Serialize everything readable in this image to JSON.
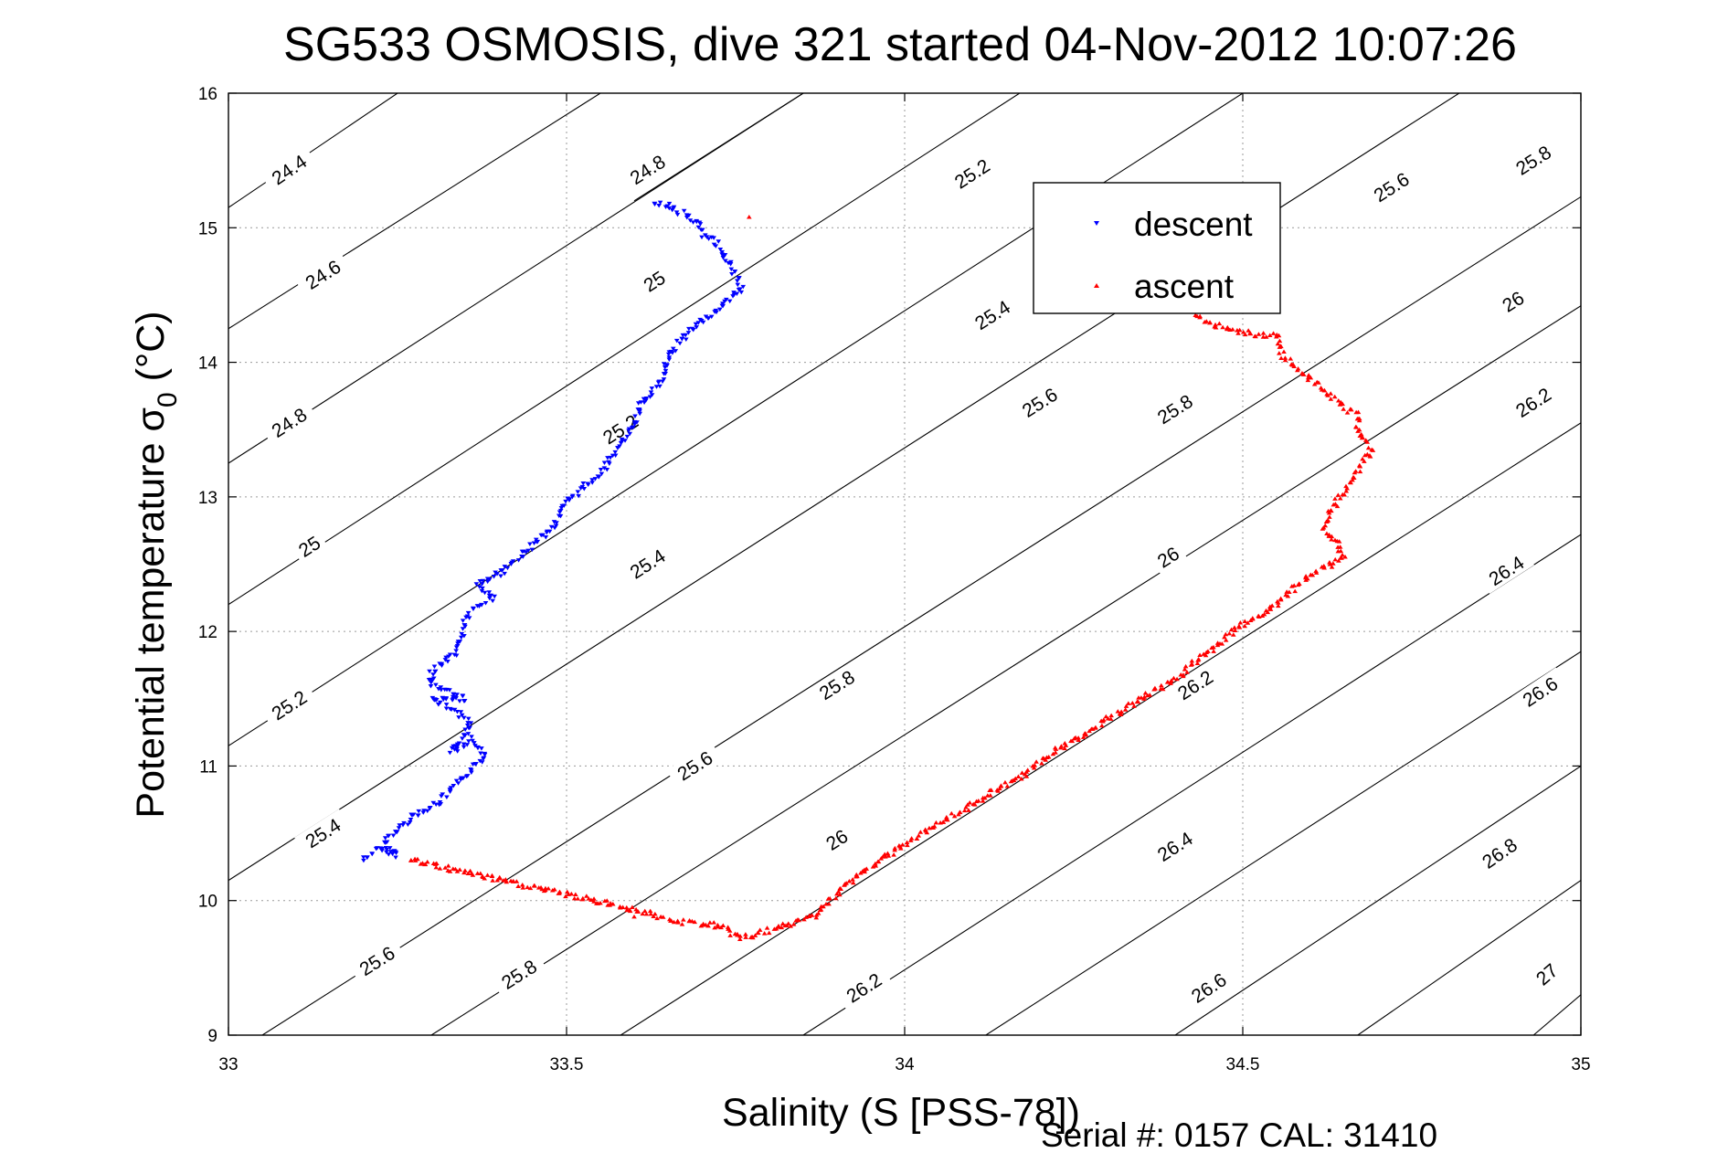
{
  "figure": {
    "title": "SG533 OSMOSIS, dive 321 started 04-Nov-2012 10:07:26",
    "serial_text": "Serial #: 0157  CAL: 31410"
  },
  "chart_data": {
    "type": "scatter",
    "title": "SG533 OSMOSIS, dive 321 started 04-Nov-2012 10:07:26",
    "xlabel": "Salinity (S [PSS-78])",
    "ylabel": "Potential temperature σ0 (°C)",
    "xlim": [
      33,
      35
    ],
    "ylim": [
      9,
      16
    ],
    "xticks": [
      33,
      33.5,
      34,
      34.5,
      35
    ],
    "xtick_labels": [
      "33",
      "33.5",
      "34",
      "34.5",
      "35"
    ],
    "yticks": [
      9,
      10,
      11,
      12,
      13,
      14,
      15,
      16
    ],
    "ytick_labels": [
      "9",
      "10",
      "11",
      "12",
      "13",
      "14",
      "15",
      "16"
    ],
    "grid": true,
    "legend_position": "top-right",
    "contours": [
      {
        "label": "24.4",
        "x0": 33.0,
        "y0": 15.15,
        "x1": 33.25,
        "y1": 16.0,
        "lx": 33.09,
        "ly": 15.43
      },
      {
        "label": "24.6",
        "x0": 33.0,
        "y0": 14.25,
        "x1": 33.55,
        "y1": 16.0,
        "lx": 33.14,
        "ly": 14.65
      },
      {
        "label": "24.8",
        "x0": 33.0,
        "y0": 13.25,
        "x1": 33.85,
        "y1": 16.0,
        "lx": 33.09,
        "ly": 13.55
      },
      {
        "label": "24.8",
        "x0": 33.6,
        "y0": 15.2,
        "x1": 33.85,
        "y1": 16.0,
        "lx": 33.62,
        "ly": 15.43
      },
      {
        "label": "25",
        "x0": 33.0,
        "y0": 12.2,
        "x1": 34.17,
        "y1": 16.0,
        "lx": 33.12,
        "ly": 12.63
      },
      {
        "label": "25",
        "x0": 33.0,
        "y0": 12.2,
        "x1": 34.17,
        "y1": 16.0,
        "lx": 33.63,
        "ly": 14.6
      },
      {
        "label": "25.2",
        "x0": 33.0,
        "y0": 11.15,
        "x1": 34.5,
        "y1": 16.0,
        "lx": 33.09,
        "ly": 11.45
      },
      {
        "label": "25.2",
        "x0": 33.0,
        "y0": 11.15,
        "x1": 34.5,
        "y1": 16.0,
        "lx": 34.1,
        "ly": 15.4
      },
      {
        "label": "25.2",
        "x0": 33.0,
        "y0": 11.15,
        "x1": 34.5,
        "y1": 16.0,
        "lx": 33.58,
        "ly": 13.5
      },
      {
        "label": "25.4",
        "x0": 33.0,
        "y0": 10.15,
        "x1": 34.82,
        "y1": 16.0,
        "lx": 33.14,
        "ly": 10.5
      },
      {
        "label": "25.4",
        "x0": 33.0,
        "y0": 10.15,
        "x1": 34.82,
        "y1": 16.0,
        "lx": 33.62,
        "ly": 12.5
      },
      {
        "label": "25.4",
        "x0": 33.0,
        "y0": 10.15,
        "x1": 34.82,
        "y1": 16.0,
        "lx": 34.13,
        "ly": 14.35
      },
      {
        "label": "25.6",
        "x0": 33.05,
        "y0": 9.0,
        "x1": 35.0,
        "y1": 15.23,
        "lx": 33.22,
        "ly": 9.55
      },
      {
        "label": "25.6",
        "x0": 33.05,
        "y0": 9.0,
        "x1": 35.0,
        "y1": 15.23,
        "lx": 33.69,
        "ly": 11.0
      },
      {
        "label": "25.6",
        "x0": 33.05,
        "y0": 9.0,
        "x1": 35.0,
        "y1": 15.23,
        "lx": 34.2,
        "ly": 13.7
      },
      {
        "label": "25.6",
        "x0": 33.05,
        "y0": 9.0,
        "x1": 35.0,
        "y1": 15.23,
        "lx": 34.72,
        "ly": 15.3
      },
      {
        "label": "25.8",
        "x0": 33.3,
        "y0": 9.0,
        "x1": 35.0,
        "y1": 14.42,
        "lx": 33.43,
        "ly": 9.45
      },
      {
        "label": "25.8",
        "x0": 33.3,
        "y0": 9.0,
        "x1": 35.0,
        "y1": 14.42,
        "lx": 33.9,
        "ly": 11.6
      },
      {
        "label": "25.8",
        "x0": 33.3,
        "y0": 9.0,
        "x1": 35.0,
        "y1": 14.42,
        "lx": 34.4,
        "ly": 13.65
      },
      {
        "label": "25.8",
        "x0": 33.3,
        "y0": 9.0,
        "x1": 35.0,
        "y1": 14.42,
        "lx": 34.93,
        "ly": 15.5
      },
      {
        "label": "26",
        "x0": 33.58,
        "y0": 9.0,
        "x1": 35.0,
        "y1": 13.55,
        "lx": 33.9,
        "ly": 10.45
      },
      {
        "label": "26",
        "x0": 33.58,
        "y0": 9.0,
        "x1": 35.0,
        "y1": 13.55,
        "lx": 34.39,
        "ly": 12.55
      },
      {
        "label": "26",
        "x0": 33.58,
        "y0": 9.0,
        "x1": 35.0,
        "y1": 13.55,
        "lx": 34.9,
        "ly": 14.45
      },
      {
        "label": "26.2",
        "x0": 33.85,
        "y0": 9.0,
        "x1": 35.0,
        "y1": 12.72,
        "lx": 33.94,
        "ly": 9.35
      },
      {
        "label": "26.2",
        "x0": 33.85,
        "y0": 9.0,
        "x1": 35.0,
        "y1": 12.72,
        "lx": 34.43,
        "ly": 11.6
      },
      {
        "label": "26.2",
        "x0": 33.85,
        "y0": 9.0,
        "x1": 35.0,
        "y1": 12.72,
        "lx": 34.93,
        "ly": 13.7
      },
      {
        "label": "26.4",
        "x0": 34.12,
        "y0": 9.0,
        "x1": 35.0,
        "y1": 11.85,
        "lx": 34.4,
        "ly": 10.4
      },
      {
        "label": "26.4",
        "x0": 34.12,
        "y0": 9.0,
        "x1": 35.0,
        "y1": 11.85,
        "lx": 34.89,
        "ly": 12.45
      },
      {
        "label": "26.6",
        "x0": 34.4,
        "y0": 9.0,
        "x1": 35.0,
        "y1": 11.0,
        "lx": 34.45,
        "ly": 9.35
      },
      {
        "label": "26.6",
        "x0": 34.4,
        "y0": 9.0,
        "x1": 35.0,
        "y1": 11.0,
        "lx": 34.94,
        "ly": 11.55
      },
      {
        "label": "26.8",
        "x0": 34.67,
        "y0": 9.0,
        "x1": 35.0,
        "y1": 10.15,
        "lx": 34.88,
        "ly": 10.35
      },
      {
        "label": "27",
        "x0": 34.93,
        "y0": 9.0,
        "x1": 35.0,
        "y1": 9.3,
        "lx": 34.95,
        "ly": 9.45
      }
    ],
    "series": [
      {
        "name": "descent",
        "color": "#0000ff",
        "marker": "triangle-down",
        "path": [
          [
            33.2,
            10.3
          ],
          [
            33.22,
            10.38
          ],
          [
            33.25,
            10.34
          ],
          [
            33.23,
            10.43
          ],
          [
            33.27,
            10.62
          ],
          [
            33.31,
            10.72
          ],
          [
            33.33,
            10.82
          ],
          [
            33.38,
            11.07
          ],
          [
            33.36,
            11.2
          ],
          [
            33.33,
            11.1
          ],
          [
            33.36,
            11.3
          ],
          [
            33.33,
            11.43
          ],
          [
            33.3,
            11.5
          ],
          [
            33.35,
            11.5
          ],
          [
            33.31,
            11.58
          ],
          [
            33.3,
            11.6
          ],
          [
            33.3,
            11.7
          ],
          [
            33.34,
            11.85
          ],
          [
            33.35,
            12.08
          ],
          [
            33.36,
            12.15
          ],
          [
            33.39,
            12.25
          ],
          [
            33.37,
            12.35
          ],
          [
            33.41,
            12.45
          ],
          [
            33.44,
            12.6
          ],
          [
            33.48,
            12.78
          ],
          [
            33.5,
            12.95
          ],
          [
            33.52,
            13.05
          ],
          [
            33.55,
            13.18
          ],
          [
            33.57,
            13.32
          ],
          [
            33.6,
            13.52
          ],
          [
            33.61,
            13.7
          ],
          [
            33.64,
            13.85
          ],
          [
            33.65,
            14.05
          ],
          [
            33.68,
            14.22
          ],
          [
            33.72,
            14.38
          ],
          [
            33.76,
            14.55
          ],
          [
            33.74,
            14.75
          ],
          [
            33.71,
            14.95
          ],
          [
            33.68,
            15.08
          ],
          [
            33.65,
            15.17
          ],
          [
            33.63,
            15.18
          ]
        ]
      },
      {
        "name": "ascent",
        "color": "#ff0000",
        "marker": "triangle-up",
        "path": [
          [
            33.27,
            10.3
          ],
          [
            33.63,
            9.9
          ],
          [
            33.65,
            9.85
          ],
          [
            33.72,
            9.82
          ],
          [
            33.76,
            9.72
          ],
          [
            33.83,
            9.82
          ],
          [
            33.87,
            9.9
          ],
          [
            33.92,
            10.15
          ],
          [
            34.0,
            10.42
          ],
          [
            34.07,
            10.62
          ],
          [
            34.1,
            10.72
          ],
          [
            34.18,
            10.95
          ],
          [
            34.22,
            11.1
          ],
          [
            34.3,
            11.35
          ],
          [
            34.35,
            11.5
          ],
          [
            34.4,
            11.65
          ],
          [
            34.45,
            11.85
          ],
          [
            34.5,
            12.05
          ],
          [
            34.55,
            12.2
          ],
          [
            34.6,
            12.42
          ],
          [
            34.65,
            12.55
          ],
          [
            34.64,
            12.65
          ],
          [
            34.62,
            12.75
          ],
          [
            34.63,
            12.9
          ],
          [
            34.65,
            13.05
          ],
          [
            34.67,
            13.2
          ],
          [
            34.69,
            13.35
          ],
          [
            34.67,
            13.5
          ],
          [
            34.67,
            13.6
          ],
          [
            34.63,
            13.75
          ],
          [
            34.56,
            14.05
          ],
          [
            34.55,
            14.2
          ],
          [
            34.5,
            14.22
          ],
          [
            34.46,
            14.28
          ],
          [
            34.43,
            14.35
          ]
        ]
      }
    ],
    "extra_points": [
      {
        "series": "ascent",
        "x": 33.77,
        "y": 15.08
      },
      {
        "series": "ascent",
        "x": 33.27,
        "y": 10.3
      },
      {
        "series": "ascent",
        "x": 33.6,
        "y": 9.88
      },
      {
        "series": "descent",
        "x": 33.7,
        "y": 14.93
      }
    ]
  },
  "legend": {
    "entries": [
      {
        "label": "descent",
        "color": "#0000ff",
        "marker": "triangle-down"
      },
      {
        "label": "ascent",
        "color": "#ff0000",
        "marker": "triangle-up"
      }
    ]
  }
}
